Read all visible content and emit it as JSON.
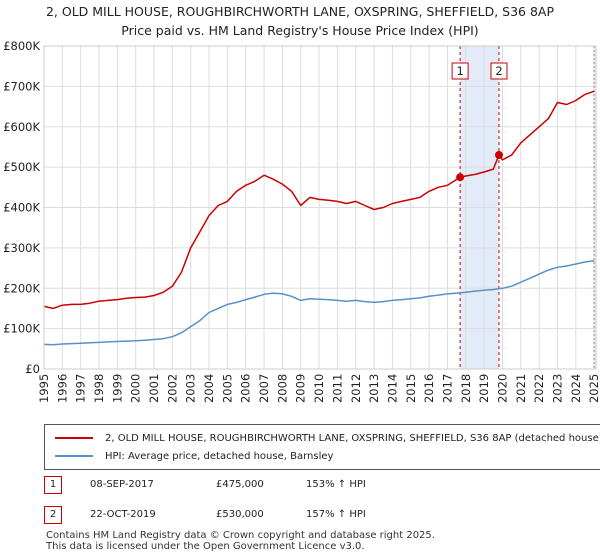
{
  "title_line1": "2, OLD MILL HOUSE, ROUGHBIRCHWORTH LANE, OXSPRING, SHEFFIELD, S36 8AP",
  "title_line2": "Price paid vs. HM Land Registry's House Price Index (HPI)",
  "legend": {
    "property_label": "2, OLD MILL HOUSE, ROUGHBIRCHWORTH LANE, OXSPRING, SHEFFIELD, S36 8AP (detached house)",
    "hpi_label": "HPI: Average price, detached house, Barnsley",
    "property_color": "#cc0000",
    "hpi_color": "#5b8fc7"
  },
  "sales": [
    {
      "num": "1",
      "date": "08-SEP-2017",
      "price": "£475,000",
      "hpi": "153% ↑ HPI"
    },
    {
      "num": "2",
      "date": "22-OCT-2019",
      "price": "£530,000",
      "hpi": "157% ↑ HPI"
    }
  ],
  "footer_line1": "Contains HM Land Registry data © Crown copyright and database right 2025.",
  "footer_line2": "This data is licensed under the Open Government Licence v3.0.",
  "chart_data": {
    "type": "line",
    "title": "Price paid vs. HM Land Registry's House Price Index (HPI)",
    "xlabel": "",
    "ylabel": "",
    "xlim": [
      1995,
      2025.1
    ],
    "ylim": [
      0,
      800000
    ],
    "x_ticks": [
      1995,
      1996,
      1997,
      1998,
      1999,
      2000,
      2001,
      2002,
      2003,
      2004,
      2005,
      2006,
      2007,
      2008,
      2009,
      2010,
      2011,
      2012,
      2013,
      2014,
      2015,
      2016,
      2017,
      2018,
      2019,
      2020,
      2021,
      2022,
      2023,
      2024,
      2025
    ],
    "y_ticks": [
      0,
      100000,
      200000,
      300000,
      400000,
      500000,
      600000,
      700000,
      800000
    ],
    "y_tick_labels": [
      "£0",
      "£100K",
      "£200K",
      "£300K",
      "£400K",
      "£500K",
      "£600K",
      "£700K",
      "£800K"
    ],
    "grid": true,
    "shaded_region": [
      2017.69,
      2019.81
    ],
    "series": [
      {
        "name": "2, OLD MILL HOUSE, ROUGHBIRCHWORTH LANE, OXSPRING, SHEFFIELD, S36 8AP (detached house)",
        "color": "#cc0000",
        "x": [
          1995,
          1995.5,
          1996,
          1996.5,
          1997,
          1997.5,
          1998,
          1998.5,
          1999,
          1999.5,
          2000,
          2000.5,
          2001,
          2001.5,
          2002,
          2002.5,
          2003,
          2003.5,
          2004,
          2004.5,
          2005,
          2005.5,
          2006,
          2006.5,
          2007,
          2007.5,
          2008,
          2008.5,
          2009,
          2009.5,
          2010,
          2010.5,
          2011,
          2011.5,
          2012,
          2012.5,
          2013,
          2013.5,
          2014,
          2014.5,
          2015,
          2015.5,
          2016,
          2016.5,
          2017,
          2017.69,
          2018,
          2018.5,
          2019,
          2019.5,
          2019.81,
          2020,
          2020.5,
          2021,
          2021.5,
          2022,
          2022.5,
          2023,
          2023.5,
          2024,
          2024.5,
          2025
        ],
        "y": [
          155000,
          150000,
          158000,
          160000,
          160000,
          163000,
          168000,
          170000,
          172000,
          175000,
          177000,
          178000,
          182000,
          190000,
          205000,
          240000,
          300000,
          340000,
          380000,
          405000,
          415000,
          440000,
          455000,
          465000,
          480000,
          470000,
          458000,
          440000,
          405000,
          425000,
          420000,
          418000,
          415000,
          410000,
          415000,
          405000,
          395000,
          400000,
          410000,
          415000,
          420000,
          425000,
          440000,
          450000,
          455000,
          475000,
          478000,
          482000,
          488000,
          495000,
          530000,
          518000,
          530000,
          560000,
          580000,
          600000,
          620000,
          660000,
          655000,
          665000,
          680000,
          688000
        ]
      },
      {
        "name": "HPI: Average price, detached house, Barnsley",
        "color": "#5b8fc7",
        "x": [
          1995,
          1995.5,
          1996,
          1996.5,
          1997,
          1997.5,
          1998,
          1998.5,
          1999,
          1999.5,
          2000,
          2000.5,
          2001,
          2001.5,
          2002,
          2002.5,
          2003,
          2003.5,
          2004,
          2004.5,
          2005,
          2005.5,
          2006,
          2006.5,
          2007,
          2007.5,
          2008,
          2008.5,
          2009,
          2009.5,
          2010,
          2010.5,
          2011,
          2011.5,
          2012,
          2012.5,
          2013,
          2013.5,
          2014,
          2014.5,
          2015,
          2015.5,
          2016,
          2016.5,
          2017,
          2017.5,
          2018,
          2018.5,
          2019,
          2019.5,
          2020,
          2020.5,
          2021,
          2021.5,
          2022,
          2022.5,
          2023,
          2023.5,
          2024,
          2024.5,
          2025
        ],
        "y": [
          61000,
          60000,
          62000,
          63000,
          64000,
          65000,
          66000,
          67000,
          68000,
          69000,
          70000,
          71000,
          73000,
          75000,
          80000,
          90000,
          105000,
          120000,
          140000,
          150000,
          160000,
          165000,
          172000,
          178000,
          185000,
          188000,
          186000,
          180000,
          170000,
          174000,
          173000,
          172000,
          170000,
          168000,
          170000,
          167000,
          165000,
          167000,
          170000,
          172000,
          174000,
          176000,
          180000,
          183000,
          186000,
          188000,
          190000,
          193000,
          195000,
          197000,
          200000,
          205000,
          215000,
          225000,
          235000,
          245000,
          252000,
          255000,
          260000,
          265000,
          268000
        ]
      }
    ],
    "markers": [
      {
        "label": "1",
        "x": 2017.69,
        "y": 475000
      },
      {
        "label": "2",
        "x": 2019.81,
        "y": 530000
      }
    ]
  }
}
